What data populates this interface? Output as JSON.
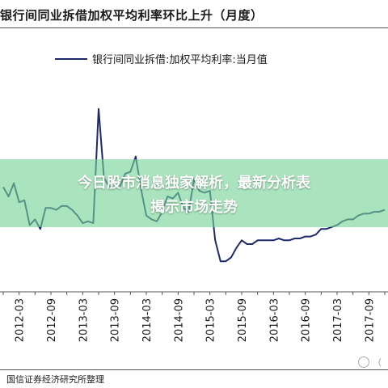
{
  "banner": {
    "line1": "今日股市消息独家解析，最新分析表",
    "line2": "揭示市场走势"
  },
  "source": "国信证券经济研究所整理",
  "watermark": "（",
  "chart_data": {
    "type": "line",
    "title": "银行间同业拆借加权平均利率环比上升（月度）",
    "xlabel": "",
    "ylabel": "",
    "legend": "top-center",
    "grid": false,
    "x_ticks": [
      "2012-03",
      "2012-09",
      "2013-03",
      "2013-09",
      "2014-03",
      "2014-09",
      "2015-03",
      "2015-09",
      "2016-03",
      "2016-09",
      "2017-03",
      "2017-09"
    ],
    "series": [
      {
        "name": "银行间同业拆借:加权平均利率:当月值",
        "color": "#1f2a6b",
        "points": [
          [
            "2011-12",
            3.7
          ],
          [
            "2012-01",
            3.45
          ],
          [
            "2012-02",
            3.8
          ],
          [
            "2012-03",
            3.3
          ],
          [
            "2012-04",
            3.35
          ],
          [
            "2012-05",
            2.7
          ],
          [
            "2012-06",
            2.85
          ],
          [
            "2012-07",
            2.6
          ],
          [
            "2012-08",
            3.15
          ],
          [
            "2012-09",
            3.15
          ],
          [
            "2012-10",
            3.1
          ],
          [
            "2012-11",
            3.2
          ],
          [
            "2012-12",
            3.2
          ],
          [
            "2013-01",
            3.1
          ],
          [
            "2013-02",
            2.95
          ],
          [
            "2013-03",
            2.75
          ],
          [
            "2013-04",
            2.8
          ],
          [
            "2013-05",
            2.75
          ],
          [
            "2013-06",
            5.75
          ],
          [
            "2013-07",
            3.95
          ],
          [
            "2013-08",
            3.7
          ],
          [
            "2013-09",
            3.7
          ],
          [
            "2013-10",
            3.7
          ],
          [
            "2013-11",
            4.05
          ],
          [
            "2013-12",
            4.1
          ],
          [
            "2014-01",
            4.5
          ],
          [
            "2014-02",
            3.65
          ],
          [
            "2014-03",
            2.95
          ],
          [
            "2014-04",
            2.85
          ],
          [
            "2014-05",
            2.8
          ],
          [
            "2014-06",
            3.05
          ],
          [
            "2014-07",
            3.45
          ],
          [
            "2014-08",
            3.4
          ],
          [
            "2014-09",
            3.55
          ],
          [
            "2014-10",
            3.15
          ],
          [
            "2014-11",
            3.05
          ],
          [
            "2014-12",
            3.9
          ],
          [
            "2015-01",
            3.6
          ],
          [
            "2015-02",
            3.55
          ],
          [
            "2015-03",
            3.6
          ],
          [
            "2015-04",
            2.3
          ],
          [
            "2015-05",
            1.75
          ],
          [
            "2015-06",
            1.75
          ],
          [
            "2015-07",
            1.85
          ],
          [
            "2015-08",
            2.1
          ],
          [
            "2015-09",
            2.3
          ],
          [
            "2015-10",
            2.2
          ],
          [
            "2015-11",
            2.2
          ],
          [
            "2015-12",
            2.3
          ],
          [
            "2016-01",
            2.3
          ],
          [
            "2016-02",
            2.3
          ],
          [
            "2016-03",
            2.3
          ],
          [
            "2016-04",
            2.35
          ],
          [
            "2016-05",
            2.3
          ],
          [
            "2016-06",
            2.3
          ],
          [
            "2016-07",
            2.35
          ],
          [
            "2016-08",
            2.35
          ],
          [
            "2016-09",
            2.4
          ],
          [
            "2016-10",
            2.4
          ],
          [
            "2016-11",
            2.45
          ],
          [
            "2016-12",
            2.6
          ],
          [
            "2017-01",
            2.6
          ],
          [
            "2017-02",
            2.65
          ],
          [
            "2017-03",
            2.7
          ],
          [
            "2017-04",
            2.8
          ],
          [
            "2017-05",
            2.85
          ],
          [
            "2017-06",
            2.85
          ],
          [
            "2017-07",
            2.95
          ],
          [
            "2017-08",
            3.0
          ],
          [
            "2017-09",
            3.0
          ],
          [
            "2017-10",
            3.05
          ],
          [
            "2017-11",
            3.05
          ],
          [
            "2017-12",
            3.1
          ]
        ]
      }
    ]
  }
}
